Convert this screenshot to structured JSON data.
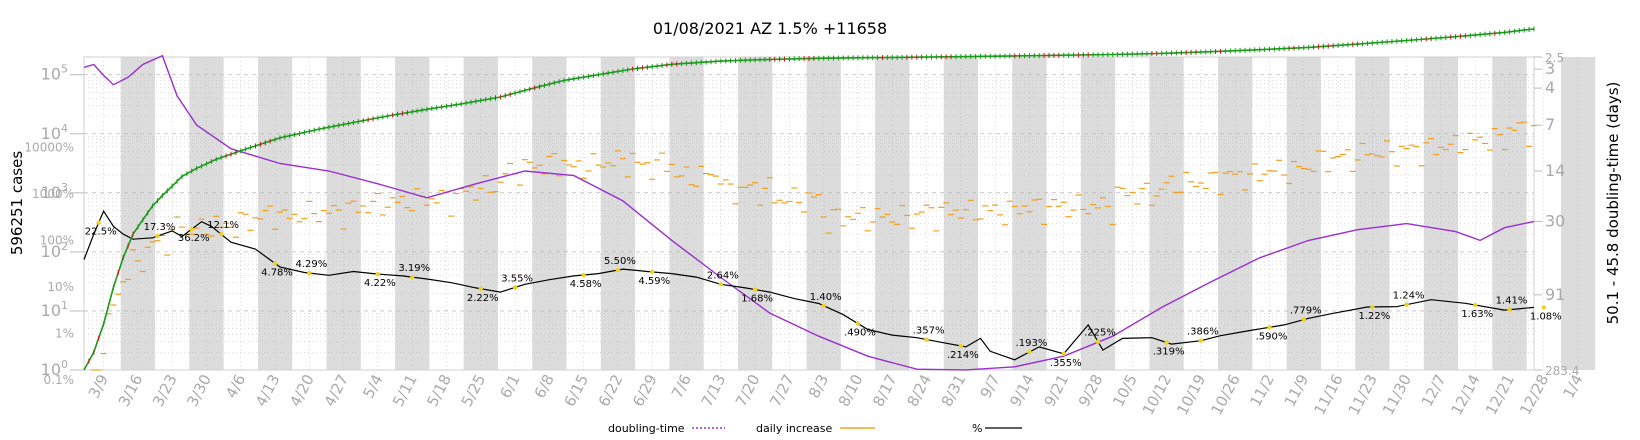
{
  "chart_data": {
    "type": "line",
    "title": "01/08/2021 AZ 1.5% +11658",
    "left_axis_label": "596251 cases",
    "right_axis_label": "50.1 - 45.8 doubling-time (days)",
    "left_log_ticks": [
      "10^0",
      "10^1",
      "10^2",
      "10^3",
      "10^4",
      "10^5"
    ],
    "left_pct_ticks": [
      "0.1%",
      "1%",
      "10%",
      "100%",
      "1000%",
      "10000%"
    ],
    "right_ticks": [
      "2.5",
      "3",
      "4",
      "7",
      "14",
      "30",
      "91",
      "283.4"
    ],
    "x_ticks": [
      "3/9",
      "3/16",
      "3/23",
      "3/30",
      "4/6",
      "4/13",
      "4/20",
      "4/27",
      "5/4",
      "5/11",
      "5/18",
      "5/25",
      "6/1",
      "6/8",
      "6/15",
      "6/22",
      "6/29",
      "7/6",
      "7/13",
      "7/20",
      "7/27",
      "8/3",
      "8/10",
      "8/17",
      "8/24",
      "8/31",
      "9/7",
      "9/14",
      "9/21",
      "9/28",
      "10/5",
      "10/12",
      "10/19",
      "10/26",
      "11/2",
      "11/9",
      "11/16",
      "11/23",
      "11/30",
      "12/7",
      "12/14",
      "12/21",
      "12/28",
      "1/4"
    ],
    "percent_labels": [
      {
        "date": "3/8",
        "text": "22.5%"
      },
      {
        "date": "3/20",
        "text": "17.3%"
      },
      {
        "date": "3/27",
        "text": "36.2%"
      },
      {
        "date": "4/2",
        "text": "12.1%"
      },
      {
        "date": "4/13",
        "text": "4.78%"
      },
      {
        "date": "4/20",
        "text": "4.29%"
      },
      {
        "date": "5/4",
        "text": "4.22%"
      },
      {
        "date": "5/11",
        "text": "3.19%"
      },
      {
        "date": "5/25",
        "text": "2.22%"
      },
      {
        "date": "6/1",
        "text": "3.55%"
      },
      {
        "date": "6/15",
        "text": "4.58%"
      },
      {
        "date": "6/22",
        "text": "5.50%"
      },
      {
        "date": "6/29",
        "text": "4.59%"
      },
      {
        "date": "7/13",
        "text": "2.64%"
      },
      {
        "date": "7/20",
        "text": "1.68%"
      },
      {
        "date": "8/3",
        "text": "1.40%"
      },
      {
        "date": "8/10",
        "text": ".490%"
      },
      {
        "date": "8/24",
        "text": ".357%"
      },
      {
        "date": "8/31",
        "text": ".214%"
      },
      {
        "date": "9/14",
        "text": ".193%"
      },
      {
        "date": "9/21",
        "text": ".355%"
      },
      {
        "date": "9/28",
        "text": ".225%"
      },
      {
        "date": "10/12",
        "text": ".319%"
      },
      {
        "date": "10/19",
        "text": ".386%"
      },
      {
        "date": "11/2",
        "text": ".590%"
      },
      {
        "date": "11/9",
        "text": ".779%"
      },
      {
        "date": "11/23",
        "text": "1.22%"
      },
      {
        "date": "11/30",
        "text": "1.24%"
      },
      {
        "date": "12/14",
        "text": "1.63%"
      },
      {
        "date": "12/21",
        "text": "1.41%"
      },
      {
        "date": "12/28",
        "text": "1.08%"
      }
    ],
    "series": [
      {
        "name": "cases",
        "color": "#1a9a1a",
        "points": [
          [
            0,
            1
          ],
          [
            2,
            2
          ],
          [
            4,
            6
          ],
          [
            6,
            25
          ],
          [
            8,
            80
          ],
          [
            10,
            200
          ],
          [
            12,
            350
          ],
          [
            14,
            600
          ],
          [
            16,
            900
          ],
          [
            18,
            1300
          ],
          [
            20,
            1900
          ],
          [
            23,
            2600
          ],
          [
            27,
            3700
          ],
          [
            33,
            5500
          ],
          [
            40,
            8500
          ],
          [
            48,
            12000
          ],
          [
            55,
            15500
          ],
          [
            62,
            20000
          ],
          [
            70,
            26000
          ],
          [
            77,
            32000
          ],
          [
            85,
            42000
          ],
          [
            92,
            60000
          ],
          [
            98,
            80000
          ],
          [
            105,
            100000
          ],
          [
            112,
            125000
          ],
          [
            120,
            150000
          ],
          [
            130,
            170000
          ],
          [
            140,
            182000
          ],
          [
            150,
            190000
          ],
          [
            160,
            194000
          ],
          [
            170,
            198000
          ],
          [
            180,
            203000
          ],
          [
            190,
            208000
          ],
          [
            200,
            214000
          ],
          [
            210,
            220000
          ],
          [
            220,
            230000
          ],
          [
            230,
            245000
          ],
          [
            240,
            265000
          ],
          [
            250,
            290000
          ],
          [
            260,
            330000
          ],
          [
            270,
            380000
          ],
          [
            280,
            440000
          ],
          [
            290,
            520000
          ],
          [
            296,
            596251
          ]
        ]
      },
      {
        "name": "doubling-time",
        "color": "#9a2fd0",
        "points": [
          [
            0,
            2.92
          ],
          [
            2,
            2.8
          ],
          [
            4,
            3.3
          ],
          [
            6,
            3.8
          ],
          [
            9,
            3.4
          ],
          [
            12,
            2.8
          ],
          [
            16,
            2.45
          ],
          [
            19,
            4.5
          ],
          [
            23,
            7
          ],
          [
            30,
            10
          ],
          [
            40,
            12.5
          ],
          [
            50,
            14
          ],
          [
            60,
            17
          ],
          [
            70,
            21
          ],
          [
            80,
            17
          ],
          [
            90,
            14
          ],
          [
            100,
            15
          ],
          [
            110,
            22
          ],
          [
            120,
            40
          ],
          [
            130,
            70
          ],
          [
            140,
            120
          ],
          [
            150,
            170
          ],
          [
            160,
            230
          ],
          [
            170,
            280
          ],
          [
            180,
            283
          ],
          [
            190,
            270
          ],
          [
            200,
            230
          ],
          [
            210,
            170
          ],
          [
            220,
            110
          ],
          [
            230,
            75
          ],
          [
            240,
            52
          ],
          [
            250,
            40
          ],
          [
            260,
            34
          ],
          [
            270,
            31
          ],
          [
            280,
            35
          ],
          [
            285,
            40
          ],
          [
            290,
            33
          ],
          [
            296,
            30
          ]
        ]
      },
      {
        "name": "%",
        "color": "#000000",
        "points": [
          [
            0,
            0.08
          ],
          [
            2,
            0.22
          ],
          [
            4,
            0.55
          ],
          [
            6,
            0.3
          ],
          [
            8,
            0.22
          ],
          [
            10,
            0.18
          ],
          [
            14,
            0.19
          ],
          [
            18,
            0.25
          ],
          [
            20,
            0.2
          ],
          [
            24,
            0.36
          ],
          [
            26,
            0.3
          ],
          [
            30,
            0.16
          ],
          [
            35,
            0.121
          ],
          [
            40,
            0.06
          ],
          [
            45,
            0.048
          ],
          [
            50,
            0.043
          ],
          [
            55,
            0.05
          ],
          [
            60,
            0.045
          ],
          [
            65,
            0.042
          ],
          [
            70,
            0.037
          ],
          [
            75,
            0.032
          ],
          [
            80,
            0.026
          ],
          [
            85,
            0.022
          ],
          [
            90,
            0.03
          ],
          [
            95,
            0.036
          ],
          [
            100,
            0.042
          ],
          [
            105,
            0.046
          ],
          [
            110,
            0.055
          ],
          [
            115,
            0.05
          ],
          [
            120,
            0.046
          ],
          [
            125,
            0.04
          ],
          [
            130,
            0.03
          ],
          [
            135,
            0.026
          ],
          [
            140,
            0.022
          ],
          [
            145,
            0.017
          ],
          [
            150,
            0.014
          ],
          [
            155,
            0.009
          ],
          [
            160,
            0.005
          ],
          [
            165,
            0.004
          ],
          [
            170,
            0.0036
          ],
          [
            175,
            0.003
          ],
          [
            180,
            0.0025
          ],
          [
            183,
            0.0035
          ],
          [
            185,
            0.0021
          ],
          [
            190,
            0.0015
          ],
          [
            195,
            0.0025
          ],
          [
            200,
            0.0019
          ],
          [
            205,
            0.006
          ],
          [
            208,
            0.0022
          ],
          [
            212,
            0.0035
          ],
          [
            218,
            0.0036
          ],
          [
            222,
            0.0028
          ],
          [
            228,
            0.0032
          ],
          [
            232,
            0.0039
          ],
          [
            238,
            0.0048
          ],
          [
            245,
            0.006
          ],
          [
            250,
            0.0078
          ],
          [
            255,
            0.0095
          ],
          [
            262,
            0.0122
          ],
          [
            268,
            0.0124
          ],
          [
            275,
            0.0163
          ],
          [
            282,
            0.0141
          ],
          [
            290,
            0.0108
          ],
          [
            296,
            0.012
          ]
        ]
      }
    ],
    "legend": {
      "doubling_time": "doubling-time",
      "daily_increase": "daily increase",
      "percent": "%"
    },
    "colors": {
      "cases": "#1a9a1a",
      "cases_alt": "#cc1a1a",
      "doubling": "#9a2fd0",
      "daily": "#f0a020",
      "percent": "#000000",
      "band": "#dcdcdc",
      "axis_text": "#bbbbbb"
    }
  }
}
